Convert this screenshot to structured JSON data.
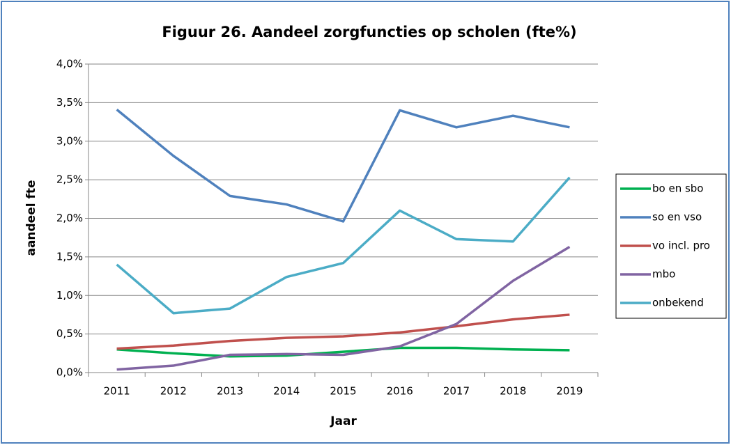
{
  "chart_data": {
    "type": "line",
    "title": "Figuur 26. Aandeel zorgfuncties op scholen (fte%)",
    "x_label": "Jaar",
    "y_label": "aandeel fte",
    "categories": [
      "2011",
      "2012",
      "2013",
      "2014",
      "2015",
      "2016",
      "2017",
      "2018",
      "2019"
    ],
    "series": [
      {
        "name": "bo en sbo",
        "color": "#00b050",
        "values": [
          0.3,
          0.25,
          0.21,
          0.22,
          0.27,
          0.32,
          0.32,
          0.3,
          0.29
        ]
      },
      {
        "name": "so en vso",
        "color": "#4f81bd",
        "values": [
          3.41,
          2.81,
          2.29,
          2.18,
          1.96,
          3.4,
          3.18,
          3.33,
          3.18
        ]
      },
      {
        "name": "vo incl. pro",
        "color": "#c0504d",
        "values": [
          0.31,
          0.35,
          0.41,
          0.45,
          0.47,
          0.52,
          0.6,
          0.69,
          0.75
        ]
      },
      {
        "name": "mbo",
        "color": "#8064a2",
        "values": [
          0.04,
          0.09,
          0.23,
          0.24,
          0.23,
          0.34,
          0.63,
          1.19,
          1.63
        ]
      },
      {
        "name": "onbekend",
        "color": "#4bacc6",
        "values": [
          1.4,
          0.77,
          0.83,
          1.24,
          1.42,
          2.1,
          1.73,
          1.7,
          2.53
        ]
      }
    ],
    "ylim": [
      0,
      4
    ],
    "yticks": [
      {
        "value": 0,
        "label": "0,0%"
      },
      {
        "value": 0.5,
        "label": "0,5%"
      },
      {
        "value": 1,
        "label": "1,0%"
      },
      {
        "value": 1.5,
        "label": "1,5%"
      },
      {
        "value": 2,
        "label": "2,0%"
      },
      {
        "value": 2.5,
        "label": "2,5%"
      },
      {
        "value": 3,
        "label": "3,0%"
      },
      {
        "value": 3.5,
        "label": "3,5%"
      },
      {
        "value": 4,
        "label": "4,0%"
      }
    ],
    "grid": true,
    "legend": "right"
  }
}
